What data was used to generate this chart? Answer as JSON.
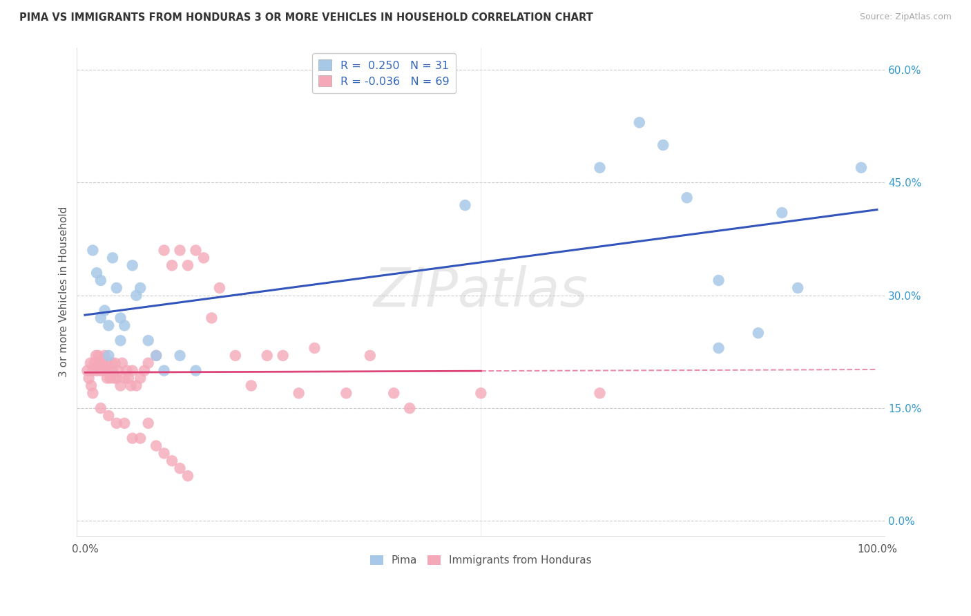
{
  "title": "PIMA VS IMMIGRANTS FROM HONDURAS 3 OR MORE VEHICLES IN HOUSEHOLD CORRELATION CHART",
  "source": "Source: ZipAtlas.com",
  "ylabel": "3 or more Vehicles in Household",
  "bg_color": "#ffffff",
  "grid_color": "#cccccc",
  "pima_color": "#a8c8e8",
  "honduras_color": "#f4a8b8",
  "pima_line_color": "#3355bb",
  "honduras_line_color": "#dd4477",
  "pima_R": 0.25,
  "pima_N": 31,
  "honduras_R": -0.036,
  "honduras_N": 69,
  "pima_x": [
    1.0,
    1.5,
    2.0,
    2.5,
    3.0,
    3.5,
    4.0,
    4.5,
    5.0,
    6.0,
    7.0,
    8.0,
    9.0,
    10.0,
    48.0,
    65.0,
    70.0,
    73.0,
    76.0,
    80.0,
    85.0,
    90.0,
    98.0,
    2.0,
    3.0,
    4.5,
    6.5,
    12.0,
    14.0,
    80.0,
    88.0
  ],
  "pima_y": [
    36.0,
    33.0,
    32.0,
    28.0,
    26.0,
    35.0,
    31.0,
    24.0,
    26.0,
    34.0,
    31.0,
    24.0,
    22.0,
    20.0,
    42.0,
    47.0,
    53.0,
    50.0,
    43.0,
    32.0,
    25.0,
    31.0,
    47.0,
    27.0,
    22.0,
    27.0,
    30.0,
    22.0,
    20.0,
    23.0,
    41.0
  ],
  "honduras_x": [
    0.3,
    0.5,
    0.7,
    0.8,
    1.0,
    1.2,
    1.4,
    1.5,
    1.7,
    1.8,
    2.0,
    2.2,
    2.4,
    2.5,
    2.7,
    2.8,
    3.0,
    3.2,
    3.4,
    3.5,
    3.7,
    3.8,
    4.0,
    4.2,
    4.5,
    4.7,
    5.0,
    5.3,
    5.5,
    5.8,
    6.0,
    6.5,
    7.0,
    7.5,
    8.0,
    9.0,
    10.0,
    11.0,
    12.0,
    13.0,
    14.0,
    15.0,
    16.0,
    17.0,
    19.0,
    21.0,
    23.0,
    25.0,
    27.0,
    29.0,
    33.0,
    36.0,
    39.0,
    41.0,
    50.0,
    65.0,
    1.0,
    2.0,
    3.0,
    4.0,
    5.0,
    6.0,
    7.0,
    8.0,
    9.0,
    10.0,
    11.0,
    12.0,
    13.0
  ],
  "honduras_y": [
    20.0,
    19.0,
    21.0,
    18.0,
    20.0,
    21.0,
    22.0,
    20.0,
    22.0,
    21.0,
    20.0,
    21.0,
    20.0,
    22.0,
    21.0,
    19.0,
    20.0,
    19.0,
    21.0,
    20.0,
    19.0,
    21.0,
    19.0,
    20.0,
    18.0,
    21.0,
    19.0,
    20.0,
    19.0,
    18.0,
    20.0,
    18.0,
    19.0,
    20.0,
    21.0,
    22.0,
    36.0,
    34.0,
    36.0,
    34.0,
    36.0,
    35.0,
    27.0,
    31.0,
    22.0,
    18.0,
    22.0,
    22.0,
    17.0,
    23.0,
    17.0,
    22.0,
    17.0,
    15.0,
    17.0,
    17.0,
    17.0,
    15.0,
    14.0,
    13.0,
    13.0,
    11.0,
    11.0,
    13.0,
    10.0,
    9.0,
    8.0,
    7.0,
    6.0
  ]
}
